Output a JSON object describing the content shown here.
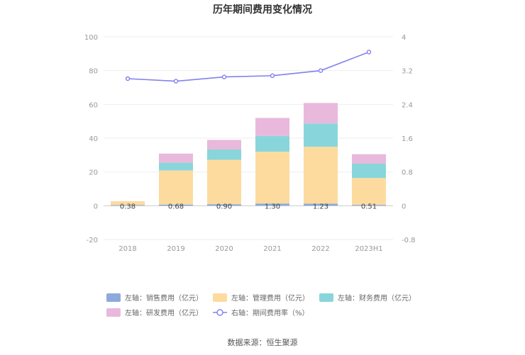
{
  "chart_data": {
    "type": "bar",
    "title": "历年期间费用变化情况",
    "categories": [
      "2018",
      "2019",
      "2020",
      "2021",
      "2022",
      "2023H1"
    ],
    "left_axis": {
      "ylim": [
        -20,
        100
      ],
      "ticks": [
        "-20",
        "0",
        "20",
        "40",
        "60",
        "80",
        "100"
      ]
    },
    "right_axis": {
      "ylim": [
        -0.8,
        4
      ],
      "ticks": [
        "-0.8",
        "0",
        "0.8",
        "1.6",
        "2.4",
        "3.2",
        "4"
      ]
    },
    "series": [
      {
        "name": "左轴：销售费用（亿元）",
        "axis": "left",
        "kind": "bar",
        "color": "#8eaadc",
        "values": [
          0.38,
          0.68,
          0.9,
          1.3,
          1.23,
          0.51
        ],
        "labels": [
          "0.38",
          "0.68",
          "0.90",
          "1.30",
          "1.23",
          "0.51"
        ]
      },
      {
        "name": "左轴：管理费用（亿元）",
        "axis": "left",
        "kind": "bar",
        "color": "#fddb9e",
        "values": [
          2.3,
          20.2,
          26.3,
          30.7,
          33.7,
          15.9
        ]
      },
      {
        "name": "左轴：财务费用（亿元）",
        "axis": "left",
        "kind": "bar",
        "color": "#88d6db",
        "values": [
          0,
          4.6,
          6.1,
          9.3,
          13.8,
          8.5
        ]
      },
      {
        "name": "左轴：研发费用（亿元）",
        "axis": "left",
        "kind": "bar",
        "color": "#e8b9dc",
        "values": [
          0,
          5.4,
          5.7,
          10.7,
          12.1,
          5.6
        ]
      },
      {
        "name": "右轴：期间费用率（%）",
        "axis": "right",
        "kind": "line",
        "color": "#8080ef",
        "values": [
          3.01,
          2.95,
          3.05,
          3.08,
          3.2,
          3.64
        ]
      }
    ],
    "grid": true,
    "legend_position": "bottom"
  },
  "source_text": "数据来源：恒生聚源"
}
